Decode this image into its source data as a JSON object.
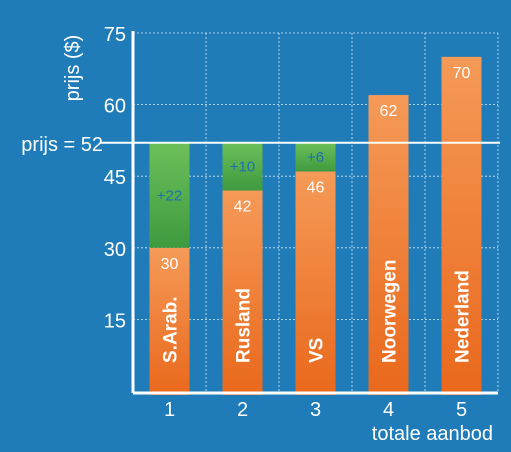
{
  "chart_data": {
    "type": "bar",
    "stacked": true,
    "ylabel": "prijs ($)",
    "xlabel": "totale aanbod",
    "ylim": [
      0,
      75
    ],
    "yticks": [
      15,
      30,
      45,
      60,
      75
    ],
    "grid": true,
    "categories": [
      "1",
      "2",
      "3",
      "4",
      "5"
    ],
    "countries": [
      "S.Arab.",
      "Rusland",
      "VS",
      "Noorwegen",
      "Nederland"
    ],
    "cost": [
      30,
      42,
      46,
      62,
      70
    ],
    "profit": [
      22,
      10,
      6,
      null,
      null
    ],
    "cost_labels": [
      "30",
      "42",
      "46",
      "62",
      "70"
    ],
    "profit_labels": [
      "+22",
      "+10",
      "+6",
      "",
      ""
    ],
    "price_line": {
      "value": 52,
      "label": "prijs = 52"
    },
    "colors": {
      "background": "#1f7cb8",
      "cost": "#f0782a",
      "profit": "#4ea84a",
      "axis": "#ffffff"
    }
  }
}
